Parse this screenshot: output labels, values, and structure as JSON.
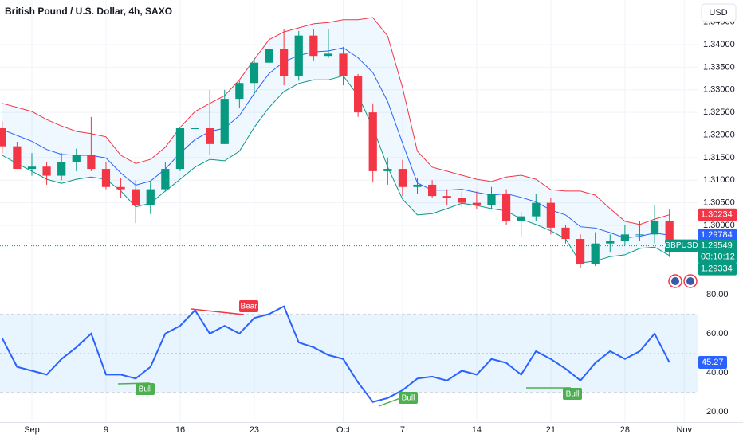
{
  "header": {
    "title": "British Pound / U.S. Dollar, 4h, SAXO",
    "currency": "USD"
  },
  "chart_data": [
    {
      "type": "candlestick",
      "symbol": "GBPUSD",
      "countdown": "03:10:12",
      "x": [
        0,
        1,
        2,
        3,
        4,
        5,
        6,
        7,
        8,
        9,
        10,
        11,
        12,
        13,
        14,
        15,
        16,
        17,
        18,
        19,
        20,
        21,
        22,
        23,
        24,
        25,
        26,
        27,
        28,
        29,
        30,
        31,
        32,
        33,
        34,
        35,
        36,
        37,
        38,
        39,
        40,
        41,
        42,
        43,
        44,
        45
      ],
      "open": [
        1.3215,
        1.3175,
        1.3125,
        1.313,
        1.311,
        1.314,
        1.3155,
        1.3125,
        1.3085,
        1.308,
        1.3045,
        1.308,
        1.3125,
        1.3215,
        1.3215,
        1.318,
        1.328,
        1.3315,
        1.336,
        1.339,
        1.333,
        1.342,
        1.3375,
        1.338,
        1.333,
        1.325,
        1.312,
        1.3125,
        1.3085,
        1.309,
        1.3065,
        1.306,
        1.305,
        1.3045,
        1.307,
        1.301,
        1.302,
        1.305,
        1.2995,
        1.297,
        1.2915,
        1.296,
        1.2965,
        1.298,
        1.298,
        1.301
      ],
      "high": [
        1.323,
        1.3185,
        1.316,
        1.314,
        1.316,
        1.317,
        1.324,
        1.314,
        1.3105,
        1.31,
        1.3095,
        1.314,
        1.3215,
        1.323,
        1.33,
        1.33,
        1.332,
        1.337,
        1.3425,
        1.3435,
        1.343,
        1.3435,
        1.3435,
        1.3395,
        1.3335,
        1.327,
        1.315,
        1.3145,
        1.3105,
        1.31,
        1.308,
        1.3075,
        1.3075,
        1.3085,
        1.308,
        1.303,
        1.307,
        1.306,
        1.3,
        1.298,
        1.2985,
        1.298,
        1.3,
        1.301,
        1.3045,
        1.3035
      ],
      "low": [
        1.316,
        1.3125,
        1.311,
        1.309,
        1.31,
        1.312,
        1.312,
        1.308,
        1.306,
        1.3005,
        1.3025,
        1.3075,
        1.312,
        1.317,
        1.3155,
        1.318,
        1.326,
        1.329,
        1.335,
        1.331,
        1.332,
        1.3365,
        1.337,
        1.331,
        1.324,
        1.3095,
        1.309,
        1.3065,
        1.307,
        1.306,
        1.3045,
        1.304,
        1.3035,
        1.3035,
        1.3,
        1.2975,
        1.301,
        1.298,
        1.296,
        1.2905,
        1.291,
        1.294,
        1.2955,
        1.2965,
        1.296,
        1.293
      ],
      "close": [
        1.3175,
        1.3125,
        1.313,
        1.311,
        1.314,
        1.3155,
        1.3125,
        1.3085,
        1.308,
        1.3045,
        1.308,
        1.3125,
        1.3215,
        1.3215,
        1.318,
        1.328,
        1.3315,
        1.336,
        1.339,
        1.333,
        1.342,
        1.3375,
        1.338,
        1.333,
        1.325,
        1.312,
        1.3125,
        1.3085,
        1.309,
        1.3065,
        1.306,
        1.305,
        1.3045,
        1.307,
        1.301,
        1.302,
        1.305,
        1.2995,
        1.297,
        1.2915,
        1.296,
        1.2965,
        1.298,
        1.298,
        1.301,
        1.29549
      ],
      "up_color": "#089981",
      "down_color": "#f23645",
      "price_line_color": "#089981",
      "bands": {
        "upper": [
          1.327,
          1.3261,
          1.3252,
          1.3234,
          1.322,
          1.3208,
          1.3203,
          1.3196,
          1.3155,
          1.3137,
          1.3146,
          1.3173,
          1.3217,
          1.3252,
          1.327,
          1.3287,
          1.3322,
          1.3367,
          1.3411,
          1.3428,
          1.3437,
          1.3446,
          1.3449,
          1.3455,
          1.3455,
          1.346,
          1.3419,
          1.3305,
          1.3164,
          1.3129,
          1.312,
          1.3111,
          1.3102,
          1.3097,
          1.3107,
          1.3111,
          1.3102,
          1.3079,
          1.3076,
          1.3076,
          1.3067,
          1.3037,
          1.3009,
          1.3002,
          1.3014,
          1.30234
        ],
        "middle": [
          1.3212,
          1.3199,
          1.3186,
          1.3168,
          1.3157,
          1.3155,
          1.3155,
          1.3149,
          1.3116,
          1.3089,
          1.3098,
          1.3125,
          1.316,
          1.319,
          1.3208,
          1.3215,
          1.3243,
          1.3292,
          1.3336,
          1.3362,
          1.3376,
          1.3384,
          1.3386,
          1.3393,
          1.3371,
          1.3338,
          1.3274,
          1.3182,
          1.3094,
          1.3078,
          1.3078,
          1.308,
          1.3073,
          1.3067,
          1.307,
          1.3062,
          1.3052,
          1.3034,
          1.3023,
          1.2997,
          1.2994,
          1.2984,
          1.2972,
          1.2976,
          1.2983,
          1.29784
        ],
        "lower": [
          1.3155,
          1.3137,
          1.312,
          1.3102,
          1.3093,
          1.3102,
          1.3107,
          1.3102,
          1.3076,
          1.3041,
          1.3049,
          1.3076,
          1.3102,
          1.3129,
          1.3146,
          1.3143,
          1.3164,
          1.3217,
          1.3261,
          1.3296,
          1.3314,
          1.3322,
          1.3322,
          1.3331,
          1.3287,
          1.3217,
          1.3129,
          1.3058,
          1.3023,
          1.3026,
          1.3037,
          1.3049,
          1.3044,
          1.3037,
          1.3032,
          1.3014,
          1.3002,
          1.2988,
          1.297,
          1.2917,
          1.2921,
          1.2931,
          1.2935,
          1.2949,
          1.2952,
          1.29334
        ],
        "upper_color": "#f23645",
        "middle_color": "#2962ff",
        "lower_color": "#089981",
        "fill": "#2196f3"
      },
      "xlim": [
        -0.15,
        46.9
      ],
      "ylim": [
        1.28555,
        1.34987
      ],
      "yticks": [
        {
          "value": 1.3,
          "label": "1.30000"
        },
        {
          "value": 1.305,
          "label": "1.30500"
        },
        {
          "value": 1.31,
          "label": "1.31000"
        },
        {
          "value": 1.315,
          "label": "1.31500"
        },
        {
          "value": 1.32,
          "label": "1.32000"
        },
        {
          "value": 1.325,
          "label": "1.32500"
        },
        {
          "value": 1.33,
          "label": "1.33000"
        },
        {
          "value": 1.335,
          "label": "1.33500"
        },
        {
          "value": 1.34,
          "label": "1.34000"
        },
        {
          "value": 1.345,
          "label": "1.34500"
        }
      ],
      "xticks": [
        {
          "value": 2,
          "label": "Sep"
        },
        {
          "value": 7,
          "label": "9"
        },
        {
          "value": 12,
          "label": "16"
        },
        {
          "value": 17,
          "label": "23"
        },
        {
          "value": 23,
          "label": "Oct"
        },
        {
          "value": 27,
          "label": "7"
        },
        {
          "value": 32,
          "label": "14"
        },
        {
          "value": 37,
          "label": "21"
        },
        {
          "value": 42,
          "label": "28"
        },
        {
          "value": 46,
          "label": "Nov"
        }
      ],
      "grid": true
    },
    {
      "type": "line",
      "color": "#2962ff",
      "values": [
        57.6,
        43,
        41,
        39,
        47,
        53,
        60,
        39,
        39,
        37,
        43,
        60,
        64,
        72,
        60,
        64,
        60,
        68,
        70,
        74,
        55.5,
        53,
        49,
        47,
        35,
        25,
        27,
        31,
        37,
        38,
        36,
        41,
        39,
        47,
        45,
        39,
        51,
        47,
        42,
        36,
        45,
        51,
        47,
        51,
        60,
        45.27
      ],
      "ylim": [
        14.7,
        82
      ],
      "yticks": [
        {
          "value": 20,
          "label": "20.00"
        },
        {
          "value": 40,
          "label": "40.00"
        },
        {
          "value": 60,
          "label": "60.00"
        },
        {
          "value": 80,
          "label": "80.00"
        }
      ],
      "band": [
        30,
        70
      ],
      "band_color": "#2196f3",
      "midline": 50,
      "annotations": [
        {
          "text": "Bull",
          "color": "#4caf50"
        },
        {
          "text": "Bear",
          "color": "#f23645"
        },
        {
          "text": "Bull",
          "color": "#4caf50"
        },
        {
          "text": "Bull",
          "color": "#4caf50"
        }
      ]
    }
  ]
}
